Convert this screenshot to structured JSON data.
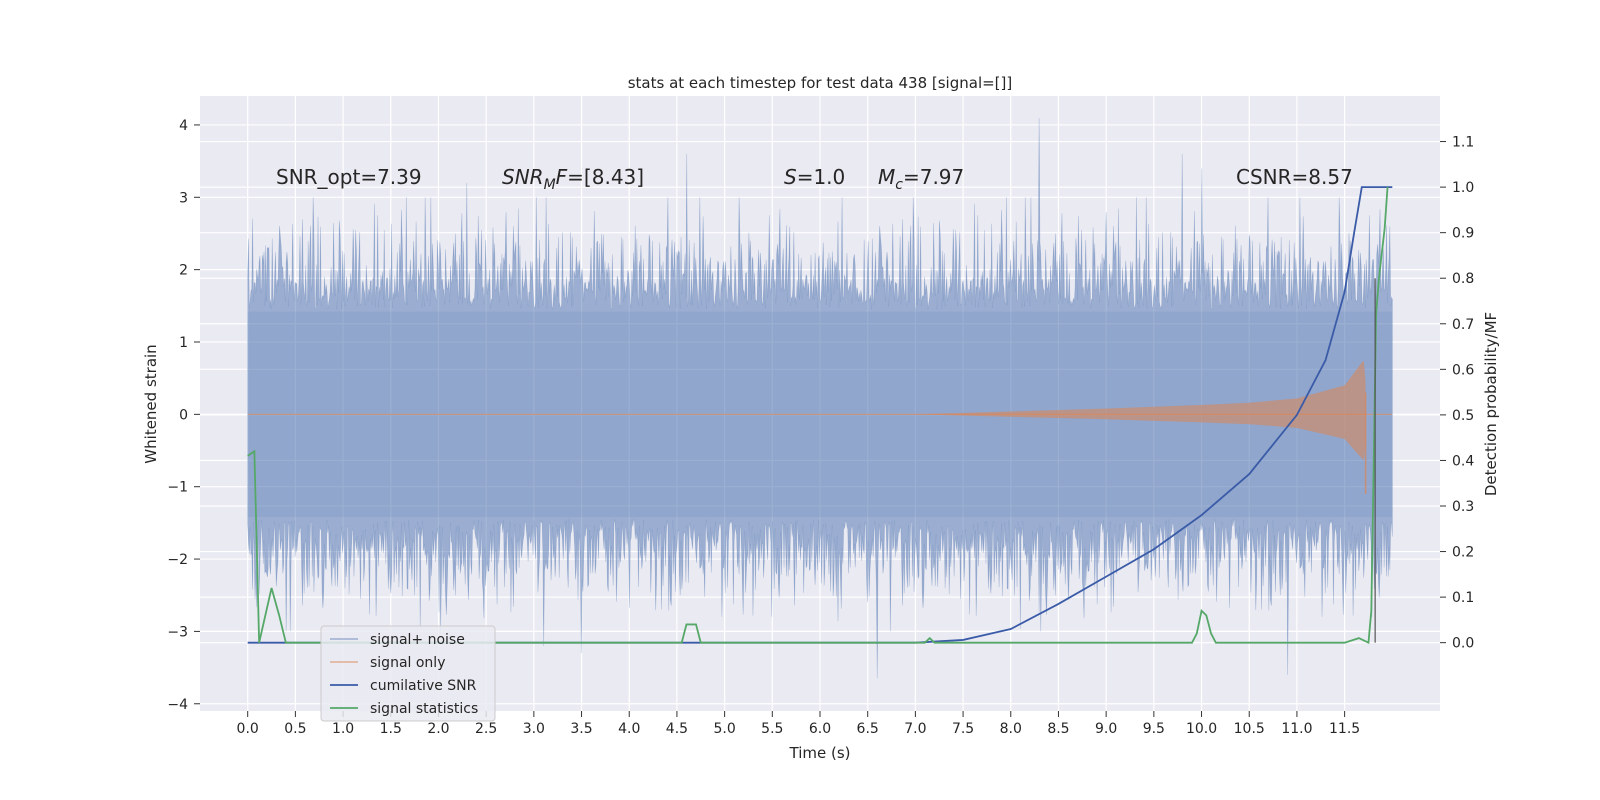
{
  "chart_data": {
    "type": "line",
    "title": "stats at each timestep for test data 438 [signal=[]]",
    "xlabel": "Time (s)",
    "ylabel": "Whitened strain",
    "ylabel_right": "Detection probability/MF",
    "xlim": [
      -0.5,
      12.5
    ],
    "ylim": [
      -4.1,
      4.4
    ],
    "ylim_right": [
      -0.15,
      1.2
    ],
    "x_ticks": [
      "0.0",
      "0.5",
      "1.0",
      "1.5",
      "2.0",
      "2.5",
      "3.0",
      "3.5",
      "4.0",
      "4.5",
      "5.0",
      "5.5",
      "6.0",
      "6.5",
      "7.0",
      "7.5",
      "8.0",
      "8.5",
      "9.0",
      "9.5",
      "10.0",
      "10.5",
      "11.0",
      "11.5"
    ],
    "y_ticks": [
      "4",
      "3",
      "2",
      "1",
      "0",
      "−1",
      "−2",
      "−3",
      "−4"
    ],
    "y_ticks_right": [
      "1.1",
      "1.0",
      "0.9",
      "0.8",
      "0.7",
      "0.6",
      "0.5",
      "0.4",
      "0.3",
      "0.2",
      "0.1",
      "0.0"
    ],
    "grid": true,
    "legend_position": "lower-left",
    "annotations": {
      "snr_opt": "SNR_opt=7.39",
      "snr_mf_name": "SNR",
      "snr_mf_sub": "M",
      "snr_mf_tail": "F",
      "snr_mf_value": "=[8.43]",
      "s_name": "S",
      "s_value": "=1.0",
      "mc_name": "M",
      "mc_sub": "c",
      "mc_value": "=7.97",
      "csnr": "CSNR=8.57"
    },
    "series": [
      {
        "name": "signal+ noise",
        "axis": "left",
        "color": "#4c72b0",
        "style": "noise band",
        "x": [
          0,
          12
        ],
        "amplitude_envelope": {
          "typical": 1.6,
          "max": 4.1,
          "min": -3.65
        },
        "notable_peaks": [
          [
            2.3,
            3.2
          ],
          [
            4.6,
            3.6
          ],
          [
            8.3,
            4.1
          ],
          [
            9.8,
            3.6
          ],
          [
            10.0,
            3.4
          ],
          [
            6.6,
            -3.65
          ],
          [
            10.9,
            -3.6
          ],
          [
            3.5,
            -3.3
          ],
          [
            3.1,
            -3.2
          ],
          [
            0.4,
            -3.0
          ]
        ]
      },
      {
        "name": "signal only",
        "axis": "left",
        "color": "#dd8452",
        "style": "chirp",
        "x": [
          7.0,
          8.0,
          9.0,
          10.0,
          10.5,
          11.0,
          11.5,
          11.7,
          11.75,
          12.0
        ],
        "envelope": [
          0.0,
          0.04,
          0.08,
          0.13,
          0.16,
          0.22,
          0.4,
          0.75,
          0.0,
          0.0
        ],
        "min_excursion": -1.1
      },
      {
        "name": "cumilative SNR",
        "axis": "right",
        "color": "#3a5ba8",
        "x": [
          0.0,
          6.5,
          7.0,
          7.5,
          8.0,
          8.5,
          9.0,
          9.5,
          10.0,
          10.5,
          11.0,
          11.3,
          11.5,
          11.6,
          11.68,
          12.0
        ],
        "y": [
          0.0,
          0.0,
          0.0,
          0.006,
          0.03,
          0.085,
          0.145,
          0.205,
          0.28,
          0.37,
          0.5,
          0.62,
          0.77,
          0.9,
          1.0,
          1.0
        ]
      },
      {
        "name": "signal statistics",
        "axis": "right",
        "color": "#55a868",
        "x": [
          0.0,
          0.07,
          0.12,
          0.25,
          0.33,
          0.4,
          4.5,
          4.55,
          4.6,
          4.7,
          4.75,
          4.8,
          7.1,
          7.15,
          7.2,
          7.25,
          9.9,
          9.95,
          10.0,
          10.05,
          10.1,
          10.15,
          10.2,
          11.5,
          11.65,
          11.75,
          11.78,
          11.83,
          11.86,
          11.92,
          11.95
        ],
        "y": [
          0.41,
          0.42,
          0.0,
          0.12,
          0.06,
          0.0,
          0.0,
          0.0,
          0.04,
          0.04,
          0.0,
          0.0,
          0.0,
          0.01,
          0.0,
          0.0,
          0.0,
          0.02,
          0.07,
          0.06,
          0.02,
          0.0,
          0.0,
          0.0,
          0.01,
          0.0,
          0.07,
          0.72,
          0.8,
          0.91,
          1.0
        ]
      }
    ]
  }
}
